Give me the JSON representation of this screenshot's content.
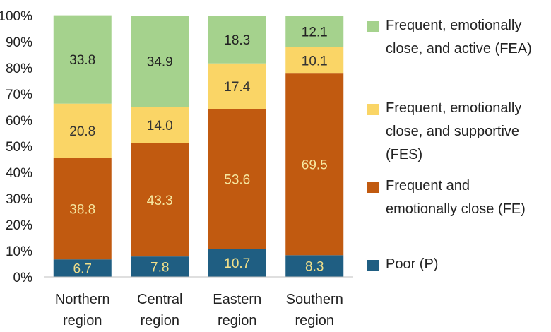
{
  "chart_data": {
    "type": "bar",
    "stacked": true,
    "categories": [
      "Northern\nregion",
      "Central\nregion",
      "Eastern\nregion",
      "Southern\nregion"
    ],
    "ylim": [
      0,
      100
    ],
    "yticks": [
      "0%",
      "10%",
      "20%",
      "30%",
      "40%",
      "50%",
      "60%",
      "70%",
      "80%",
      "90%",
      "100%"
    ],
    "grid": false,
    "legend_position": "right",
    "series": [
      {
        "name": "Poor (P)",
        "color": "#1F5E82",
        "label_color": "#F2E08A",
        "values": [
          6.7,
          7.8,
          10.7,
          8.3
        ],
        "labels": [
          "6.7",
          "7.8",
          "10.7",
          "8.3"
        ]
      },
      {
        "name": "Frequent and\nemotionally close  (FE)",
        "color": "#C15A10",
        "label_color": "#F6E7A0",
        "values": [
          38.8,
          43.3,
          53.6,
          69.5
        ],
        "labels": [
          "38.8",
          "43.3",
          "53.6",
          "69.5"
        ]
      },
      {
        "name": "Frequent, emotionally\nclose, and supportive\n(FES)",
        "color": "#FAD566",
        "label_color": "#333333",
        "values": [
          20.8,
          14.0,
          17.4,
          10.1
        ],
        "labels": [
          "20.8",
          "14.0",
          "17.4",
          "10.1"
        ]
      },
      {
        "name": "Frequent, emotionally\nclose, and active (FEA)",
        "color": "#A5D28D",
        "label_color": "#222222",
        "values": [
          33.8,
          34.9,
          18.3,
          12.1
        ],
        "labels": [
          "33.8",
          "34.9",
          "18.3",
          "12.1"
        ]
      }
    ]
  }
}
